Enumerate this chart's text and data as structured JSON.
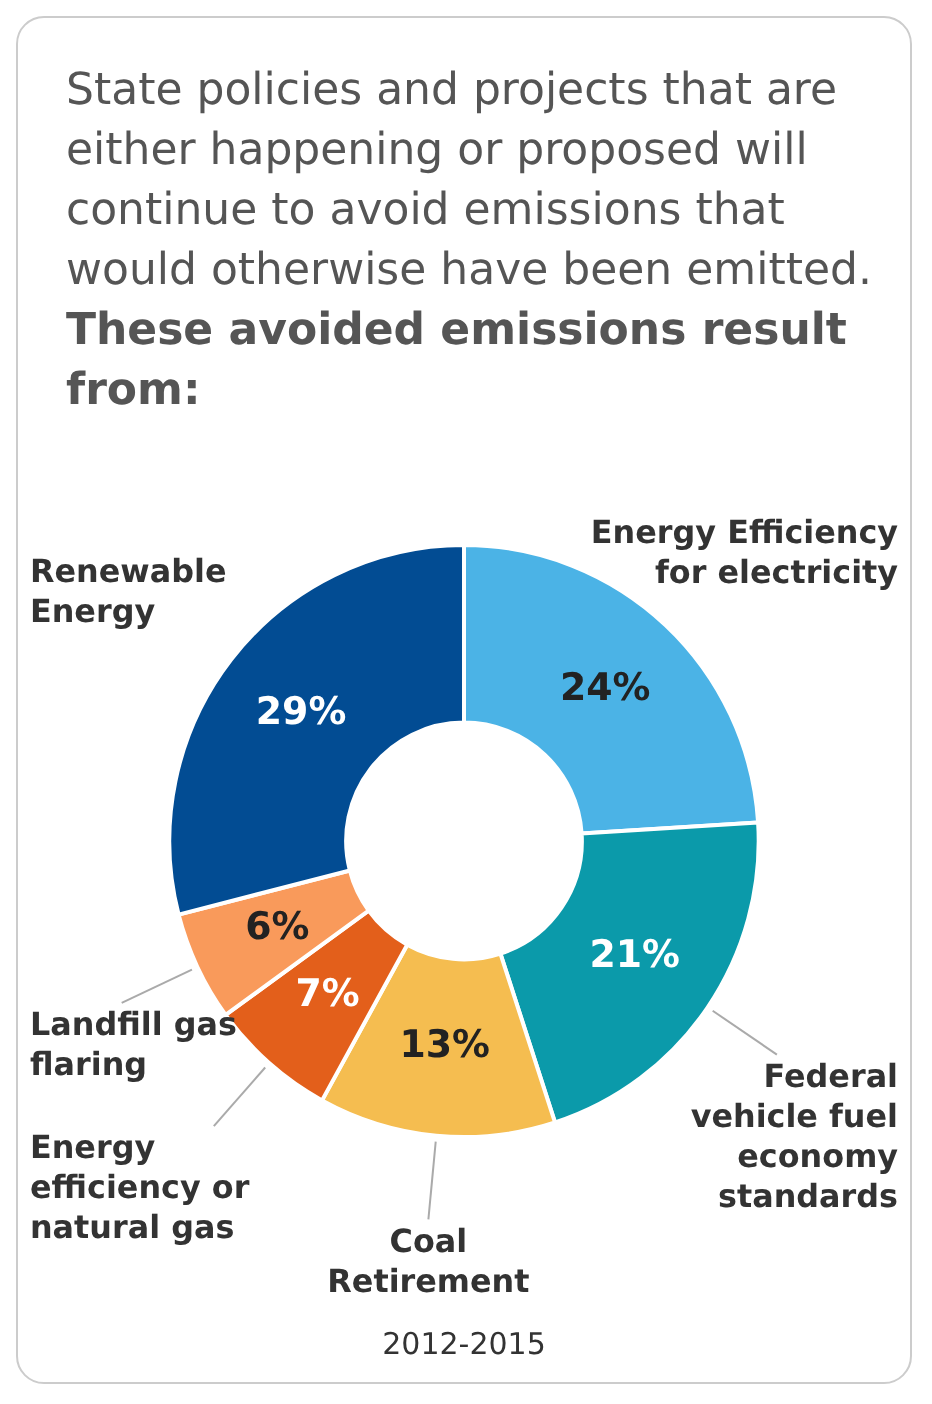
{
  "chart_data": {
    "type": "donut",
    "title": "State policies and projects that are either happening or proposed will continue to avoid emissions that would otherwise have been emitted.",
    "subtitle": "These avoided emissions result from:",
    "categories": [
      "Energy Efficiency for electricity",
      "Federal vehicle fuel economy standards",
      "Coal Retirement",
      "Energy efficiency or natural gas",
      "Landfill gas flaring",
      "Renewable Energy"
    ],
    "values": [
      24,
      21,
      13,
      7,
      6,
      29
    ],
    "colors": [
      "#4bb3e6",
      "#0b9aaa",
      "#f5bd50",
      "#e35f1b",
      "#f99a5b",
      "#024c93"
    ],
    "value_labels": [
      "24%",
      "21%",
      "13%",
      "7%",
      "6%",
      "29%"
    ],
    "annotations": [
      "2012-2015"
    ]
  }
}
